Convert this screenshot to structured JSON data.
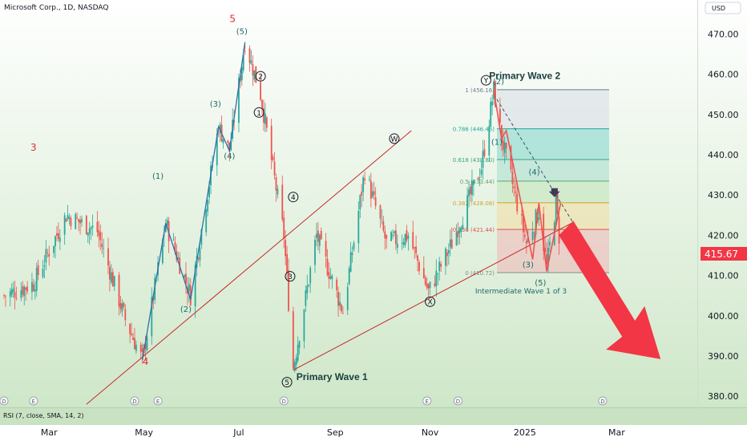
{
  "header": {
    "symbol_title": "Microsoft Corp., 1D, NASDAQ",
    "currency": "USD"
  },
  "indicator": {
    "rsi_label": "RSI (7, close, SMA, 14, 2)"
  },
  "price_tag": "415.67",
  "chart_data": {
    "type": "candlestick",
    "title": "Microsoft Corp., 1D, NASDAQ",
    "xlabel": "",
    "ylabel": "USD",
    "ylim": [
      378,
      476
    ],
    "grid": false,
    "x_tick_labels": [
      "Mar",
      "May",
      "Jul",
      "Sep",
      "Nov",
      "2025",
      "Mar"
    ],
    "y_tick_labels": [
      "380.00",
      "390.00",
      "400.00",
      "410.00",
      "420.00",
      "430.00",
      "440.00",
      "450.00",
      "460.00",
      "470.00"
    ],
    "last_price": 415.67,
    "close_path": [
      {
        "date": "2024-02-01",
        "close": 405
      },
      {
        "date": "2024-02-20",
        "close": 408
      },
      {
        "date": "2024-03-12",
        "close": 425
      },
      {
        "date": "2024-04-01",
        "close": 421
      },
      {
        "date": "2024-04-19",
        "close": 399
      },
      {
        "date": "2024-04-30",
        "close": 389
      },
      {
        "date": "2024-05-15",
        "close": 423
      },
      {
        "date": "2024-05-31",
        "close": 405
      },
      {
        "date": "2024-06-18",
        "close": 447
      },
      {
        "date": "2024-06-25",
        "close": 441
      },
      {
        "date": "2024-07-05",
        "close": 468
      },
      {
        "date": "2024-07-15",
        "close": 455
      },
      {
        "date": "2024-07-30",
        "close": 420
      },
      {
        "date": "2024-08-05",
        "close": 387
      },
      {
        "date": "2024-08-20",
        "close": 420
      },
      {
        "date": "2024-09-06",
        "close": 401
      },
      {
        "date": "2024-09-20",
        "close": 436
      },
      {
        "date": "2024-10-04",
        "close": 418
      },
      {
        "date": "2024-10-18",
        "close": 420
      },
      {
        "date": "2024-10-31",
        "close": 406
      },
      {
        "date": "2024-11-15",
        "close": 418
      },
      {
        "date": "2024-12-04",
        "close": 437
      },
      {
        "date": "2024-12-12",
        "close": 456
      },
      {
        "date": "2024-12-17",
        "close": 444
      },
      {
        "date": "2025-01-02",
        "close": 418
      },
      {
        "date": "2025-01-10",
        "close": 426
      },
      {
        "date": "2025-01-15",
        "close": 412
      },
      {
        "date": "2025-01-21",
        "close": 428
      },
      {
        "date": "2025-01-24",
        "close": 415.67
      }
    ],
    "fibonacci": [
      {
        "level": "1",
        "price": "456.16"
      },
      {
        "level": "0.786",
        "price": "446.46"
      },
      {
        "level": "0.618",
        "price": "438.80"
      },
      {
        "level": "0.5",
        "price": "433.44"
      },
      {
        "level": "0.382",
        "price": "428.08"
      },
      {
        "level": "0.236",
        "price": "421.44"
      },
      {
        "level": "0",
        "price": "410.72"
      }
    ],
    "annotations": {
      "primary_wave_1": "Primary Wave 1",
      "primary_wave_2": "Primary Wave 2",
      "intermediate_wave": "Intermediate Wave 1 of 3",
      "labels_red": [
        "5",
        "3",
        "4"
      ],
      "labels_circled_black": [
        "1",
        "2",
        "3",
        "4",
        "5",
        "W",
        "X",
        "Y"
      ],
      "labels_paren": [
        "(1)",
        "(2)",
        "(3)",
        "(4)",
        "(5)",
        "(1)",
        "(2)",
        "(3)",
        "(4)",
        "(5)"
      ]
    },
    "event_markers": [
      "D",
      "E",
      "D",
      "E",
      "D",
      "E",
      "D",
      "D"
    ]
  },
  "colors": {
    "bull": "#2aa89a",
    "bear": "#ef5350",
    "trendline": "#c62828",
    "wave_line": "#2f6fa8",
    "arrow": "#f23645",
    "price_tag_bg": "#f23645"
  }
}
